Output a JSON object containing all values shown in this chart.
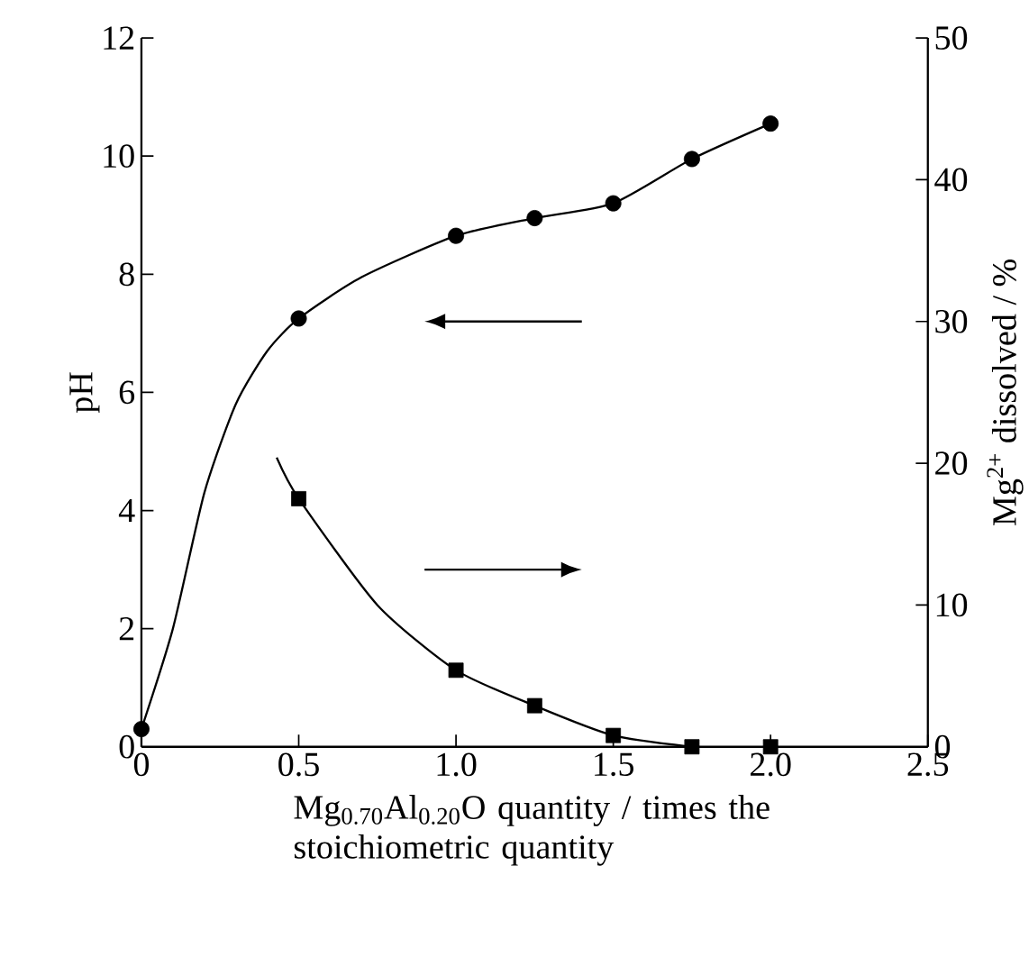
{
  "chart_data": {
    "type": "scatter",
    "xlabel": "Mg$_{0.70}$Al$_{0.20}$O quantity / times the stoichiometric quantity",
    "ylabel": "pH",
    "y2label": "Mg$^{2+}$ dissolved / %",
    "xlim": [
      0,
      2.5
    ],
    "xticks": [
      0,
      {
        "value": 0.5,
        "label": "0.5"
      },
      {
        "value": 1,
        "label": "1.0"
      },
      {
        "value": 1.5,
        "label": "1.5"
      },
      {
        "value": 2,
        "label": "2.0"
      },
      {
        "value": 2.5,
        "label": "2.5"
      }
    ],
    "ylim": [
      0,
      12
    ],
    "yticks": [
      0,
      2,
      4,
      6,
      8,
      10,
      12
    ],
    "y2lim": [
      0,
      50
    ],
    "y2ticks": [
      0,
      10,
      20,
      30,
      40,
      50
    ],
    "series": [
      {
        "type": "line",
        "marker": "none",
        "color": "#000000",
        "x": [
          0,
          0.1,
          0.2,
          0.3,
          0.4,
          0.5,
          0.7,
          1.0,
          1.25,
          1.5,
          1.75,
          2.0
        ],
        "values": [
          0.3,
          2.0,
          4.3,
          5.8,
          6.7,
          7.25,
          7.95,
          8.65,
          8.95,
          9.2,
          9.95,
          10.55
        ]
      },
      {
        "marker": "circle",
        "color": "#000000",
        "x": [
          0,
          0.5,
          1.0,
          1.25,
          1.5,
          1.75,
          2.0
        ],
        "values": [
          0.3,
          7.25,
          8.65,
          8.95,
          9.2,
          9.95,
          10.55
        ]
      },
      {
        "type": "line",
        "marker": "none",
        "axis": "y2",
        "color": "#000000",
        "x": [
          0.43,
          0.5,
          0.75,
          1.0,
          1.25,
          1.5,
          1.75
        ],
        "values": [
          20.4,
          17.5,
          10.0,
          5.4,
          2.9,
          0.8,
          0
        ]
      },
      {
        "marker": "square",
        "axis": "y2",
        "color": "#000000",
        "x": [
          0.5,
          1.0,
          1.25,
          1.5,
          1.75,
          2.0
        ],
        "values": [
          17.5,
          5.4,
          2.9,
          0.8,
          0,
          0
        ]
      }
    ]
  }
}
